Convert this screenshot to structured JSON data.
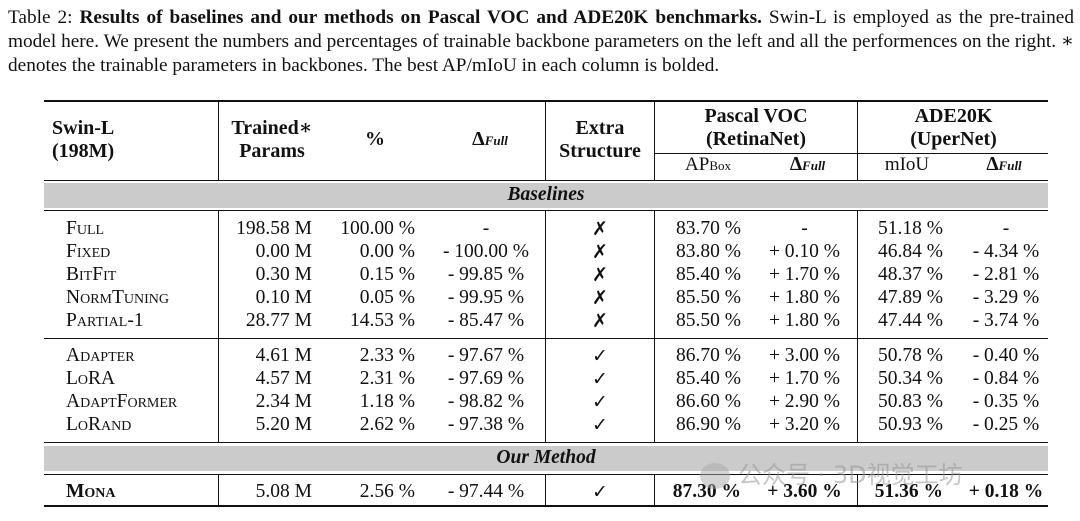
{
  "caption": {
    "label": "Table 2:",
    "lead": "Results of baselines and our methods on Pascal VOC and ADE20K benchmarks.",
    "text": "Swin-L is employed as the pre-trained model here. We present the numbers and percentages of trainable backbone parameters on the left and all the performences on the right. ∗ denotes the trainable parameters in backbones. The best AP/mIoU in each column is bolded."
  },
  "header": {
    "model_line1": "Swin-L",
    "model_line2": "(198M)",
    "trained_line1": "Trained∗",
    "trained_line2": "Params",
    "pct": "%",
    "delta_full": "Δ",
    "delta_sub": "Full",
    "extra_line1": "Extra",
    "extra_line2": "Structure",
    "voc_line1": "Pascal VOC",
    "voc_line2": "(RetinaNet)",
    "voc_ap": "AP",
    "voc_ap_sub": "Box",
    "ade_line1": "ADE20K",
    "ade_line2": "(UperNet)",
    "ade_miou": "mIoU"
  },
  "sections": {
    "baselines": "Baselines",
    "our_method": "Our Method"
  },
  "baselines": [
    {
      "method": "Full",
      "params": "198.58 M",
      "pct": "100.00 %",
      "delta": "-",
      "extra": "✗",
      "ap": "83.70 %",
      "ap_delta": "-",
      "miou": "51.18 %",
      "miou_delta": "-"
    },
    {
      "method": "Fixed",
      "params": "0.00 M",
      "pct": "0.00 %",
      "delta": "- 100.00 %",
      "extra": "✗",
      "ap": "83.80 %",
      "ap_delta": "+ 0.10 %",
      "miou": "46.84 %",
      "miou_delta": "- 4.34 %"
    },
    {
      "method": "BitFit",
      "params": "0.30 M",
      "pct": "0.15 %",
      "delta": "- 99.85 %",
      "extra": "✗",
      "ap": "85.40 %",
      "ap_delta": "+ 1.70 %",
      "miou": "48.37 %",
      "miou_delta": "- 2.81 %"
    },
    {
      "method": "NormTuning",
      "params": "0.10 M",
      "pct": "0.05 %",
      "delta": "- 99.95 %",
      "extra": "✗",
      "ap": "85.50 %",
      "ap_delta": "+ 1.80 %",
      "miou": "47.89 %",
      "miou_delta": "- 3.29 %"
    },
    {
      "method": "Partial-1",
      "params": "28.77 M",
      "pct": "14.53 %",
      "delta": "- 85.47 %",
      "extra": "✗",
      "ap": "85.50 %",
      "ap_delta": "+ 1.80 %",
      "miou": "47.44 %",
      "miou_delta": "- 3.74 %"
    }
  ],
  "adapters": [
    {
      "method": "Adapter",
      "params": "4.61 M",
      "pct": "2.33 %",
      "delta": "- 97.67 %",
      "extra": "✓",
      "ap": "86.70 %",
      "ap_delta": "+ 3.00 %",
      "miou": "50.78 %",
      "miou_delta": "- 0.40 %"
    },
    {
      "method": "LoRA",
      "params": "4.57 M",
      "pct": "2.31 %",
      "delta": "- 97.69 %",
      "extra": "✓",
      "ap": "85.40 %",
      "ap_delta": "+ 1.70 %",
      "miou": "50.34 %",
      "miou_delta": "- 0.84 %"
    },
    {
      "method": "AdaptFormer",
      "params": "2.34 M",
      "pct": "1.18 %",
      "delta": "- 98.82 %",
      "extra": "✓",
      "ap": "86.60 %",
      "ap_delta": "+ 2.90 %",
      "miou": "50.83 %",
      "miou_delta": "- 0.35 %"
    },
    {
      "method": "LoRand",
      "params": "5.20 M",
      "pct": "2.62 %",
      "delta": "- 97.38 %",
      "extra": "✓",
      "ap": "86.90 %",
      "ap_delta": "+ 3.20 %",
      "miou": "50.93 %",
      "miou_delta": "- 0.25 %"
    }
  ],
  "ours": {
    "method": "Mona",
    "params": "5.08 M",
    "pct": "2.56 %",
    "delta": "- 97.44 %",
    "extra": "✓",
    "ap": "87.30 %",
    "ap_delta": "+ 3.60 %",
    "miou": "51.36 %",
    "miou_delta": "+ 0.18 %"
  },
  "watermark": "公众号 · 3D视觉工坊"
}
